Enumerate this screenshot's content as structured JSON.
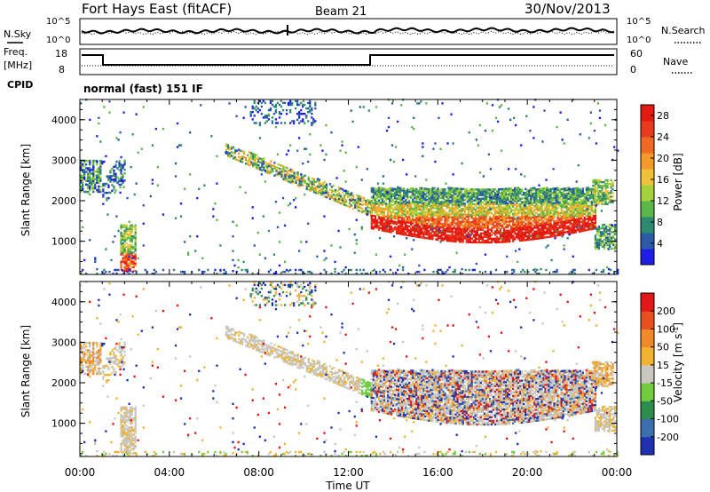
{
  "header": {
    "title": "Fort Hays East (fitACF)",
    "beam": "Beam 21",
    "date": "30/Nov/2013"
  },
  "noise_panel": {
    "left_label": "N.Sky",
    "right_label": "N.Search",
    "left_ticks": [
      "10^5",
      "10^0"
    ],
    "right_ticks": [
      "10^5",
      "10^0"
    ]
  },
  "freq_panel": {
    "left_label_1": "Freq.",
    "left_label_2": "[MHz]",
    "right_label": "Nave",
    "left_ticks": [
      "18",
      "8"
    ],
    "right_ticks": [
      "60",
      "0"
    ]
  },
  "cpid": {
    "label": "CPID",
    "value": "normal (fast) 151 IF"
  },
  "chart_data": [
    {
      "type": "heatmap",
      "panel": "power",
      "ylabel": "Slant Range [km]",
      "yticks": [
        "1000",
        "2000",
        "3000",
        "4000"
      ],
      "ylim": [
        180,
        4500
      ],
      "colorbar": {
        "label": "Power [dB]",
        "ticks": [
          "4",
          "8",
          "12",
          "16",
          "20",
          "24",
          "28"
        ],
        "colors": [
          "#1e1ee6",
          "#2c5aa8",
          "#2e8a6e",
          "#5bb54a",
          "#a5d23c",
          "#f0c23a",
          "#f39a2a",
          "#ef6a25",
          "#e83a1e",
          "#e21a12"
        ]
      }
    },
    {
      "type": "heatmap",
      "panel": "velocity",
      "ylabel": "Slant Range [km]",
      "yticks": [
        "1000",
        "2000",
        "3000",
        "4000"
      ],
      "ylim": [
        180,
        4500
      ],
      "xlabel": "Time UT",
      "xticks": [
        "00:00",
        "04:00",
        "08:00",
        "12:00",
        "16:00",
        "20:00",
        "00:00"
      ],
      "xlim": [
        0,
        24
      ],
      "colorbar": {
        "label": "Velocity [m s",
        "label_sup": "-1",
        "label_end": "]",
        "ticks": [
          "200",
          "100",
          "50",
          "15",
          "-15",
          "-50",
          "-100",
          "-200"
        ],
        "colors": [
          "#2030b0",
          "#3c6fb0",
          "#2e8c4e",
          "#70cc3c",
          "#c8c8c0",
          "#f2b330",
          "#f08a2a",
          "#e85020",
          "#e21818"
        ]
      }
    }
  ]
}
